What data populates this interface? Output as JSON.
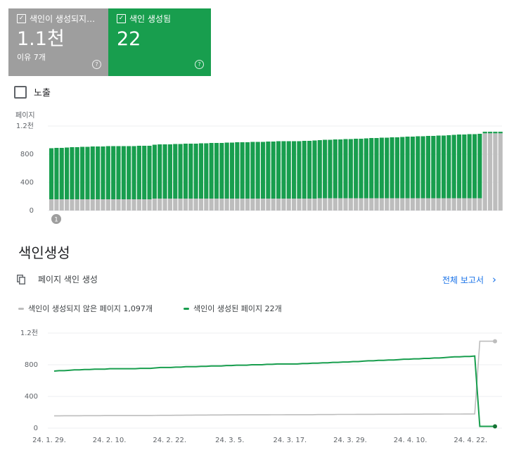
{
  "cards": {
    "not_indexed": {
      "label": "색인이 생성되지…",
      "value": "1.1천",
      "sub": "이유 7개"
    },
    "indexed": {
      "label": "색인 생성됨",
      "value": "22"
    }
  },
  "impressions_label": "노출",
  "section_title": "색인생성",
  "report_label": "페이지 색인 생성",
  "full_report_link": "전체 보고서",
  "legend": {
    "not_indexed": "색인이 생성되지 않은 페이지 1,097개",
    "indexed": "색인이 생성된 페이지 22개"
  },
  "colors": {
    "grey": "#bdbdbd",
    "green": "#189e4e",
    "link": "#1a73e8",
    "grey_card": "#9e9e9e"
  },
  "chart_data": [
    {
      "type": "bar",
      "stacked": true,
      "ylabel": "페이지",
      "y_ticks": [
        "0",
        "400",
        "800",
        "1.2천"
      ],
      "ylim": [
        0,
        1200
      ],
      "annotation": "1",
      "series": [
        {
          "name": "색인이 생성되지 않은 페이지",
          "values": [
            160,
            160,
            160,
            160,
            160,
            160,
            160,
            160,
            160,
            160,
            160,
            160,
            160,
            160,
            160,
            160,
            160,
            160,
            160,
            160,
            170,
            170,
            170,
            170,
            170,
            170,
            170,
            170,
            170,
            170,
            170,
            170,
            170,
            170,
            170,
            170,
            170,
            170,
            170,
            170,
            170,
            170,
            170,
            170,
            170,
            170,
            170,
            170,
            170,
            170,
            170,
            170,
            175,
            175,
            175,
            175,
            175,
            175,
            175,
            175,
            175,
            175,
            175,
            175,
            175,
            175,
            175,
            175,
            175,
            175,
            175,
            175,
            175,
            175,
            175,
            175,
            175,
            175,
            175,
            175,
            175,
            175,
            175,
            175,
            1097,
            1097,
            1097,
            1097
          ]
        },
        {
          "name": "색인이 생성된 페이지",
          "values": [
            725,
            730,
            730,
            735,
            740,
            740,
            745,
            745,
            750,
            750,
            750,
            755,
            755,
            755,
            755,
            755,
            755,
            760,
            760,
            760,
            765,
            770,
            770,
            770,
            775,
            775,
            780,
            780,
            780,
            785,
            785,
            790,
            790,
            790,
            795,
            795,
            800,
            800,
            800,
            805,
            805,
            805,
            810,
            810,
            815,
            815,
            815,
            815,
            815,
            820,
            820,
            825,
            825,
            830,
            830,
            835,
            835,
            840,
            840,
            845,
            845,
            850,
            855,
            855,
            860,
            860,
            865,
            865,
            870,
            875,
            875,
            880,
            880,
            885,
            885,
            890,
            890,
            895,
            900,
            905,
            905,
            910,
            910,
            915,
            22,
            22,
            22,
            22
          ]
        }
      ]
    },
    {
      "type": "line",
      "x_ticks": [
        "24. 1. 29.",
        "24. 2. 10.",
        "24. 2. 22.",
        "24. 3. 5.",
        "24. 3. 17.",
        "24. 3. 29.",
        "24. 4. 10.",
        "24. 4. 22."
      ],
      "y_ticks": [
        "0",
        "400",
        "800",
        "1.2천"
      ],
      "ylim": [
        0,
        1200
      ],
      "series": [
        {
          "name": "색인이 생성되지 않은 페이지",
          "values": [
            155,
            155,
            156,
            156,
            156,
            156,
            157,
            157,
            157,
            157,
            158,
            158,
            158,
            158,
            158,
            158,
            158,
            158,
            158,
            158,
            160,
            162,
            162,
            162,
            163,
            163,
            164,
            164,
            165,
            165,
            165,
            166,
            166,
            166,
            167,
            167,
            167,
            168,
            168,
            168,
            168,
            168,
            168,
            169,
            169,
            169,
            170,
            170,
            170,
            170,
            170,
            170,
            172,
            172,
            172,
            172,
            173,
            173,
            173,
            173,
            174,
            174,
            174,
            174,
            175,
            175,
            175,
            175,
            175,
            176,
            176,
            176,
            176,
            177,
            177,
            177,
            177,
            178,
            178,
            178,
            178,
            179,
            179,
            180,
            1097,
            1097,
            1097,
            1097
          ]
        },
        {
          "name": "색인이 생성된 페이지",
          "values": [
            720,
            725,
            725,
            730,
            735,
            735,
            740,
            740,
            745,
            745,
            745,
            750,
            750,
            750,
            750,
            750,
            750,
            755,
            755,
            755,
            760,
            765,
            765,
            765,
            770,
            770,
            775,
            775,
            775,
            780,
            780,
            785,
            785,
            785,
            790,
            790,
            795,
            795,
            795,
            800,
            800,
            800,
            805,
            805,
            810,
            810,
            810,
            810,
            810,
            815,
            815,
            820,
            820,
            825,
            825,
            830,
            830,
            835,
            835,
            840,
            840,
            845,
            850,
            850,
            855,
            855,
            860,
            860,
            865,
            870,
            870,
            875,
            875,
            880,
            880,
            885,
            885,
            890,
            895,
            900,
            900,
            905,
            905,
            910,
            22,
            22,
            22,
            22
          ]
        }
      ]
    }
  ]
}
